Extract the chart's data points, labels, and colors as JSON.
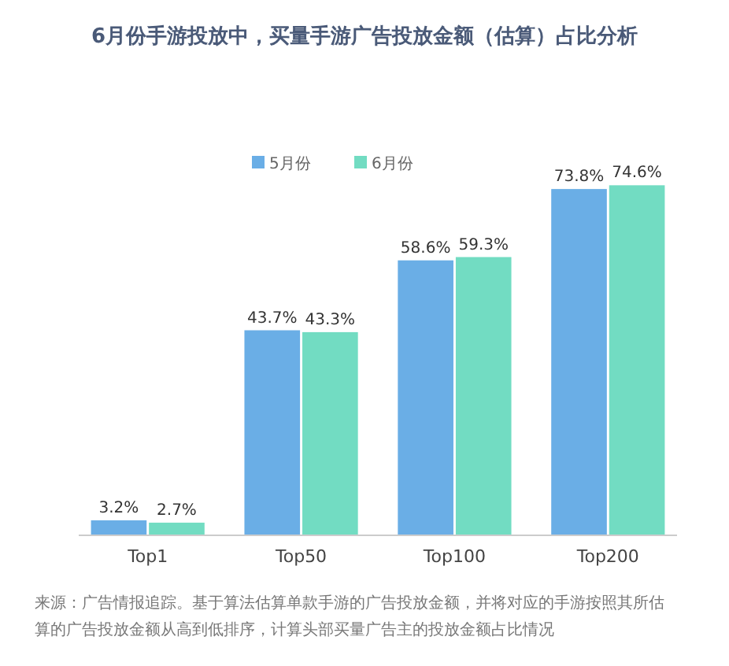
{
  "chart_data": {
    "type": "bar",
    "title": "6月份手游投放中，买量手游广告投放金额（估算）占比分析",
    "categories": [
      "Top1",
      "Top50",
      "Top100",
      "Top200"
    ],
    "series": [
      {
        "name": "5月份",
        "color": "#6aaee6",
        "values": [
          3.2,
          43.7,
          58.6,
          73.8
        ],
        "value_labels": [
          "3.2%",
          "43.7%",
          "58.6%",
          "73.8%"
        ]
      },
      {
        "name": "6月份",
        "color": "#72dcc2",
        "values": [
          2.7,
          43.3,
          59.3,
          74.6
        ],
        "value_labels": [
          "2.7%",
          "43.3%",
          "59.3%",
          "74.6%"
        ]
      }
    ],
    "legend": "top",
    "grid": false,
    "annotations": [
      "来源：广告情报追踪。基于算法估算单款手游的广告投放金额，并将对应的手游按照其所估算的广告投放金额从高到低排序，计算头部买量广告主的投放金额占比情况"
    ]
  }
}
